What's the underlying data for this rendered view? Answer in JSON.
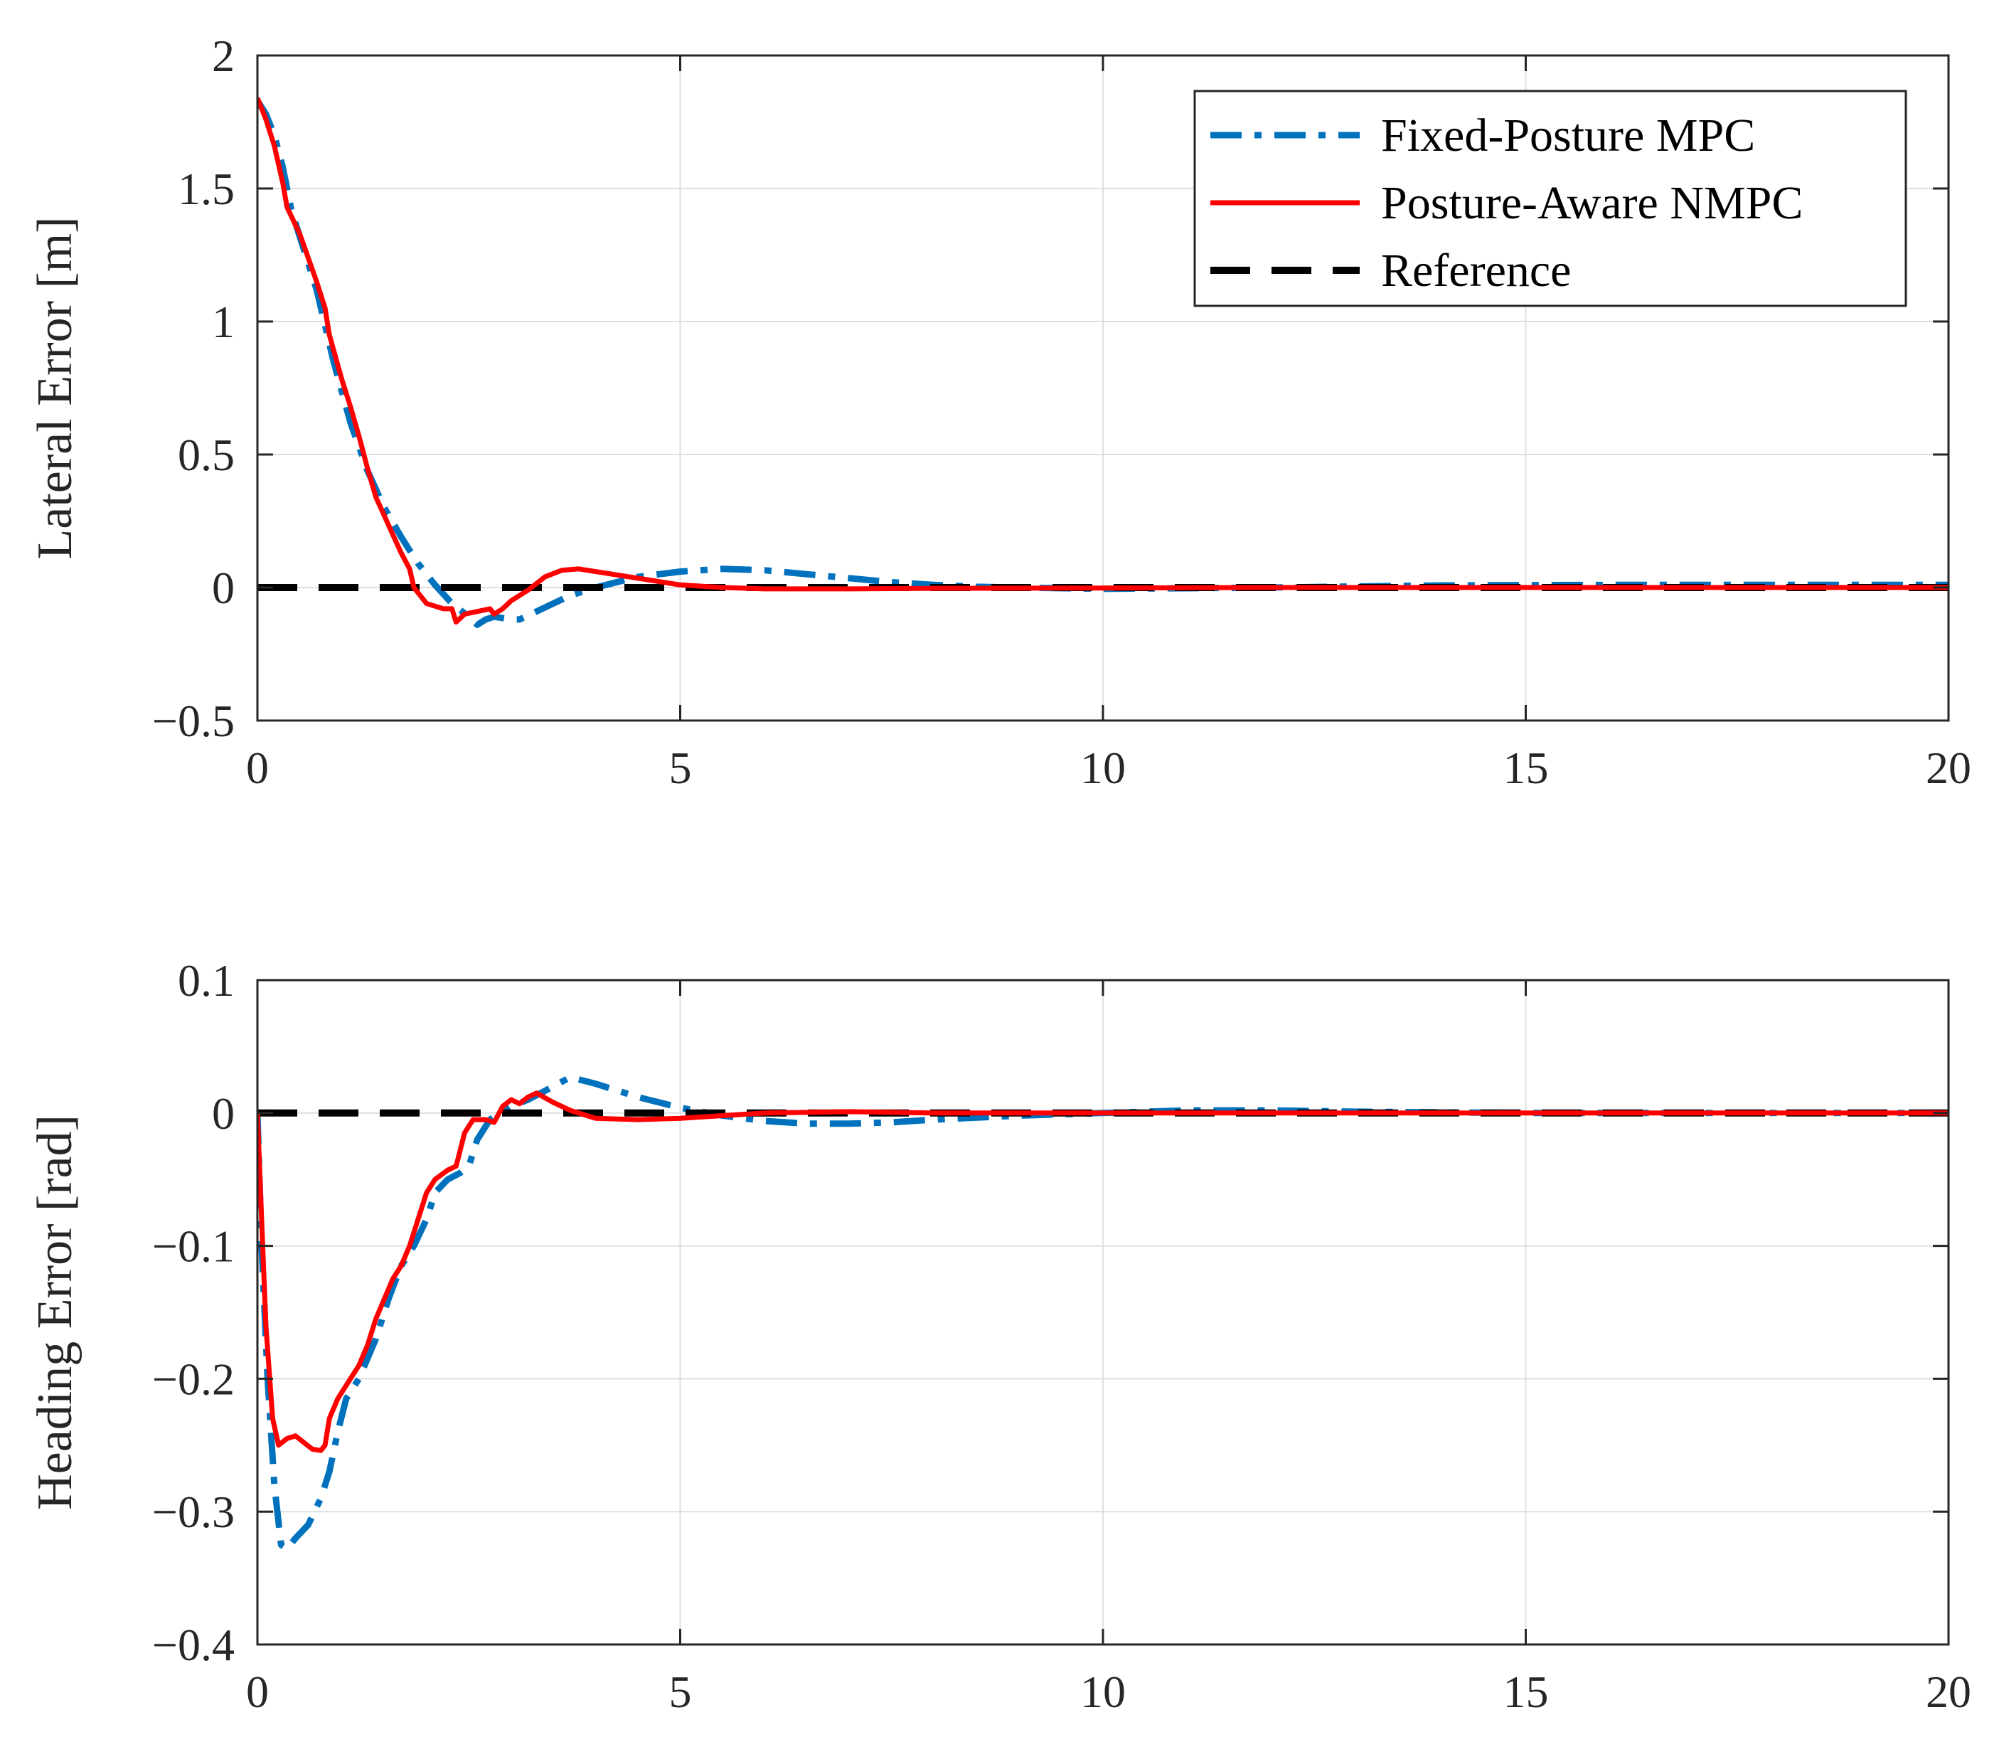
{
  "chart_data": [
    {
      "type": "line",
      "id": "lateral",
      "xlabel": "",
      "ylabel": "Lateral Error [m]",
      "xlim": [
        0,
        20
      ],
      "ylim": [
        -0.5,
        2
      ],
      "xticks": [
        0,
        5,
        10,
        15,
        20
      ],
      "xtick_labels": [
        "0",
        "5",
        "10",
        "15",
        "20"
      ],
      "yticks": [
        -0.5,
        0,
        0.5,
        1,
        1.5,
        2
      ],
      "ytick_labels": [
        "−0.5",
        "0",
        "0.5",
        "1",
        "1.5",
        "2"
      ],
      "grid": true,
      "legend": {
        "location": "top-right",
        "entries": [
          "Fixed-Posture MPC",
          "Posture-Aware NMPC",
          "Reference"
        ]
      },
      "series": [
        {
          "name": "Fixed-Posture MPC",
          "color": "#0072BD",
          "style": "dashdot",
          "points": [
            [
              0,
              1.83
            ],
            [
              0.1,
              1.78
            ],
            [
              0.2,
              1.7
            ],
            [
              0.3,
              1.58
            ],
            [
              0.4,
              1.42
            ],
            [
              0.5,
              1.32
            ],
            [
              0.7,
              1.12
            ],
            [
              0.9,
              0.85
            ],
            [
              1.1,
              0.62
            ],
            [
              1.3,
              0.44
            ],
            [
              1.5,
              0.3
            ],
            [
              1.7,
              0.19
            ],
            [
              1.9,
              0.09
            ],
            [
              2.1,
              0.01
            ],
            [
              2.3,
              -0.06
            ],
            [
              2.5,
              -0.11
            ],
            [
              2.6,
              -0.14
            ],
            [
              2.7,
              -0.12
            ],
            [
              2.8,
              -0.11
            ],
            [
              3.0,
              -0.12
            ],
            [
              3.1,
              -0.12
            ],
            [
              3.3,
              -0.09
            ],
            [
              3.5,
              -0.06
            ],
            [
              3.7,
              -0.03
            ],
            [
              4.0,
              0.0
            ],
            [
              4.5,
              0.04
            ],
            [
              5.0,
              0.06
            ],
            [
              5.5,
              0.07
            ],
            [
              6.0,
              0.065
            ],
            [
              6.5,
              0.05
            ],
            [
              7.0,
              0.035
            ],
            [
              7.5,
              0.02
            ],
            [
              8.0,
              0.01
            ],
            [
              8.5,
              0.003
            ],
            [
              9.0,
              0.0
            ],
            [
              10.0,
              -0.005
            ],
            [
              12.0,
              0.0
            ],
            [
              14.0,
              0.008
            ],
            [
              16.0,
              0.01
            ],
            [
              18.0,
              0.01
            ],
            [
              20.0,
              0.01
            ]
          ]
        },
        {
          "name": "Posture-Aware NMPC",
          "color": "#FF0000",
          "style": "solid",
          "points": [
            [
              0,
              1.84
            ],
            [
              0.1,
              1.76
            ],
            [
              0.2,
              1.66
            ],
            [
              0.3,
              1.52
            ],
            [
              0.35,
              1.43
            ],
            [
              0.5,
              1.33
            ],
            [
              0.7,
              1.15
            ],
            [
              0.8,
              1.05
            ],
            [
              0.85,
              0.95
            ],
            [
              1.0,
              0.78
            ],
            [
              1.1,
              0.68
            ],
            [
              1.2,
              0.57
            ],
            [
              1.3,
              0.45
            ],
            [
              1.4,
              0.34
            ],
            [
              1.5,
              0.27
            ],
            [
              1.6,
              0.2
            ],
            [
              1.7,
              0.13
            ],
            [
              1.8,
              0.07
            ],
            [
              1.85,
              0.0
            ],
            [
              1.9,
              -0.02
            ],
            [
              2.0,
              -0.06
            ],
            [
              2.1,
              -0.07
            ],
            [
              2.2,
              -0.08
            ],
            [
              2.3,
              -0.08
            ],
            [
              2.35,
              -0.13
            ],
            [
              2.45,
              -0.1
            ],
            [
              2.6,
              -0.09
            ],
            [
              2.75,
              -0.08
            ],
            [
              2.8,
              -0.1
            ],
            [
              2.9,
              -0.08
            ],
            [
              3.0,
              -0.05
            ],
            [
              3.2,
              -0.01
            ],
            [
              3.4,
              0.04
            ],
            [
              3.6,
              0.065
            ],
            [
              3.8,
              0.07
            ],
            [
              4.0,
              0.06
            ],
            [
              4.3,
              0.045
            ],
            [
              4.6,
              0.03
            ],
            [
              5.0,
              0.01
            ],
            [
              5.5,
              0.0
            ],
            [
              6.0,
              -0.005
            ],
            [
              7.0,
              -0.005
            ],
            [
              8.0,
              -0.003
            ],
            [
              10.0,
              -0.002
            ],
            [
              12.0,
              0.0
            ],
            [
              15.0,
              0.0
            ],
            [
              20.0,
              0.0
            ]
          ]
        },
        {
          "name": "Reference",
          "color": "#000000",
          "style": "dashed",
          "points": [
            [
              0,
              0
            ],
            [
              20,
              0
            ]
          ]
        }
      ]
    },
    {
      "type": "line",
      "id": "heading",
      "xlabel": "",
      "ylabel": "Heading Error [rad]",
      "xlim": [
        0,
        20
      ],
      "ylim": [
        -0.4,
        0.1
      ],
      "xticks": [
        0,
        5,
        10,
        15,
        20
      ],
      "xtick_labels": [
        "0",
        "5",
        "10",
        "15",
        "20"
      ],
      "yticks": [
        -0.4,
        -0.3,
        -0.2,
        -0.1,
        0,
        0.1
      ],
      "ytick_labels": [
        "−0.4",
        "−0.3",
        "−0.2",
        "−0.1",
        "0",
        "0.1"
      ],
      "grid": true,
      "series": [
        {
          "name": "Fixed-Posture MPC",
          "color": "#0072BD",
          "style": "dashdot",
          "points": [
            [
              0,
              0
            ],
            [
              0.05,
              -0.1
            ],
            [
              0.12,
              -0.2
            ],
            [
              0.2,
              -0.28
            ],
            [
              0.28,
              -0.325
            ],
            [
              0.35,
              -0.328
            ],
            [
              0.45,
              -0.32
            ],
            [
              0.6,
              -0.31
            ],
            [
              0.75,
              -0.29
            ],
            [
              0.85,
              -0.27
            ],
            [
              0.95,
              -0.24
            ],
            [
              1.05,
              -0.215
            ],
            [
              1.2,
              -0.2
            ],
            [
              1.4,
              -0.17
            ],
            [
              1.55,
              -0.14
            ],
            [
              1.7,
              -0.115
            ],
            [
              1.85,
              -0.1
            ],
            [
              2.0,
              -0.08
            ],
            [
              2.1,
              -0.06
            ],
            [
              2.25,
              -0.05
            ],
            [
              2.4,
              -0.045
            ],
            [
              2.5,
              -0.04
            ],
            [
              2.6,
              -0.02
            ],
            [
              2.75,
              -0.005
            ],
            [
              3.0,
              0.005
            ],
            [
              3.2,
              0.01
            ],
            [
              3.5,
              0.02
            ],
            [
              3.7,
              0.027
            ],
            [
              4.0,
              0.022
            ],
            [
              4.5,
              0.012
            ],
            [
              5.0,
              0.004
            ],
            [
              5.5,
              -0.002
            ],
            [
              6.0,
              -0.006
            ],
            [
              6.5,
              -0.008
            ],
            [
              7.0,
              -0.008
            ],
            [
              7.5,
              -0.007
            ],
            [
              8.0,
              -0.005
            ],
            [
              9.0,
              -0.002
            ],
            [
              10.0,
              0.0
            ],
            [
              11.0,
              0.002
            ],
            [
              12.0,
              0.002
            ],
            [
              13.0,
              0.001
            ],
            [
              15.0,
              0.0
            ],
            [
              20.0,
              0.0
            ]
          ]
        },
        {
          "name": "Posture-Aware NMPC",
          "color": "#FF0000",
          "style": "solid",
          "points": [
            [
              0,
              0
            ],
            [
              0.05,
              -0.08
            ],
            [
              0.1,
              -0.16
            ],
            [
              0.18,
              -0.23
            ],
            [
              0.25,
              -0.25
            ],
            [
              0.35,
              -0.245
            ],
            [
              0.45,
              -0.243
            ],
            [
              0.55,
              -0.248
            ],
            [
              0.65,
              -0.253
            ],
            [
              0.75,
              -0.254
            ],
            [
              0.8,
              -0.25
            ],
            [
              0.85,
              -0.23
            ],
            [
              0.95,
              -0.215
            ],
            [
              1.1,
              -0.2
            ],
            [
              1.2,
              -0.19
            ],
            [
              1.3,
              -0.175
            ],
            [
              1.4,
              -0.155
            ],
            [
              1.5,
              -0.14
            ],
            [
              1.6,
              -0.125
            ],
            [
              1.7,
              -0.115
            ],
            [
              1.8,
              -0.1
            ],
            [
              1.9,
              -0.08
            ],
            [
              2.0,
              -0.06
            ],
            [
              2.1,
              -0.05
            ],
            [
              2.25,
              -0.043
            ],
            [
              2.35,
              -0.04
            ],
            [
              2.45,
              -0.015
            ],
            [
              2.55,
              -0.005
            ],
            [
              2.7,
              -0.005
            ],
            [
              2.8,
              -0.007
            ],
            [
              2.9,
              0.005
            ],
            [
              3.0,
              0.01
            ],
            [
              3.1,
              0.007
            ],
            [
              3.2,
              0.012
            ],
            [
              3.3,
              0.015
            ],
            [
              3.5,
              0.008
            ],
            [
              3.7,
              0.002
            ],
            [
              4.0,
              -0.004
            ],
            [
              4.5,
              -0.005
            ],
            [
              5.0,
              -0.004
            ],
            [
              5.5,
              -0.002
            ],
            [
              6.0,
              0.0
            ],
            [
              7.0,
              0.001
            ],
            [
              8.0,
              0.0
            ],
            [
              10.0,
              0.0
            ],
            [
              15.0,
              0.0
            ],
            [
              20.0,
              0.0
            ]
          ]
        },
        {
          "name": "Reference",
          "color": "#000000",
          "style": "dashed",
          "points": [
            [
              0,
              0
            ],
            [
              20,
              0
            ]
          ]
        }
      ]
    }
  ]
}
